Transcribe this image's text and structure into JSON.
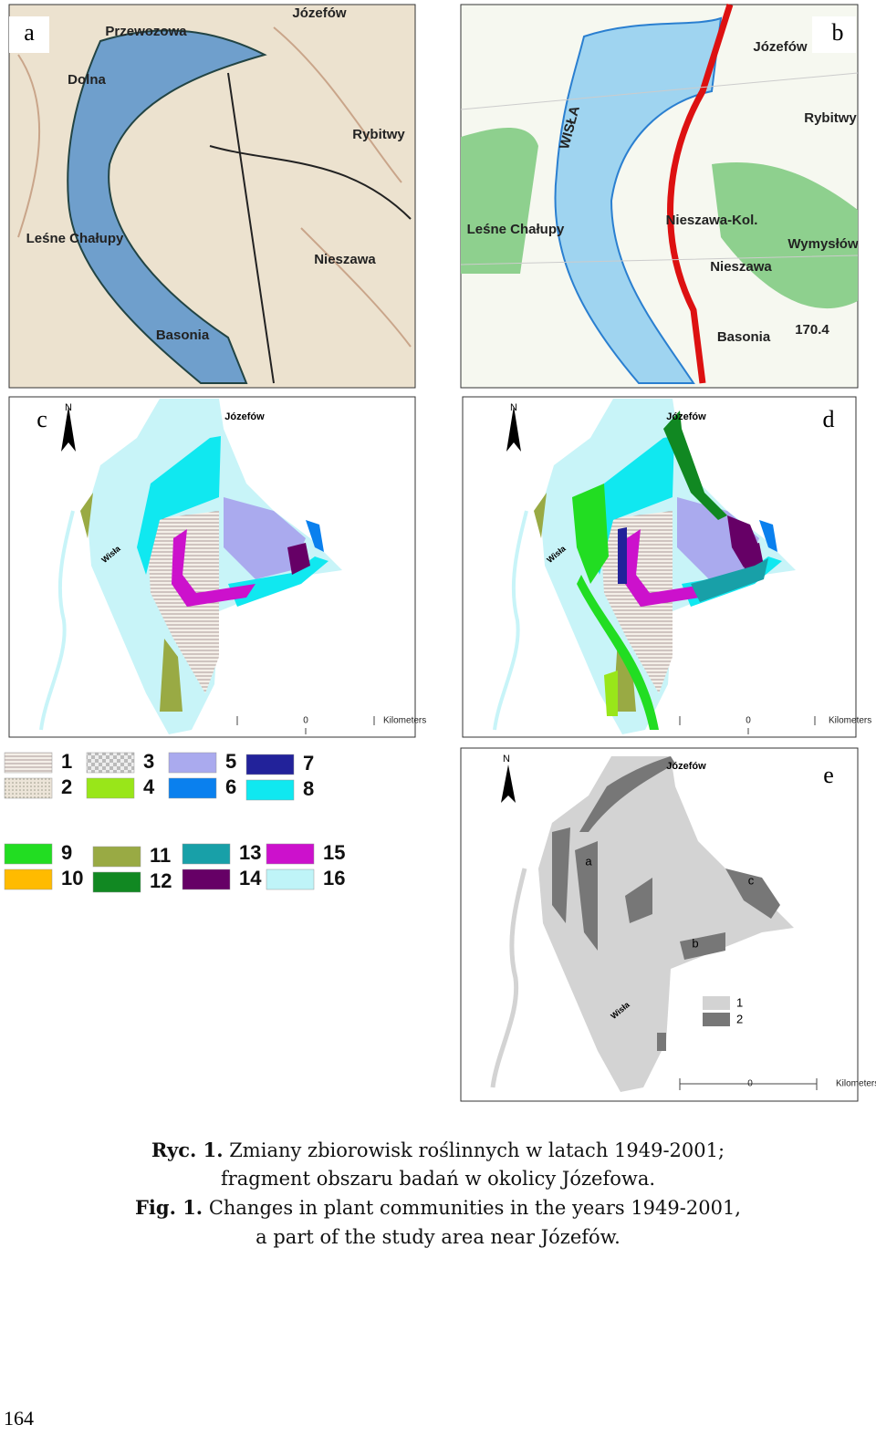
{
  "panels": {
    "a": {
      "letter": "a",
      "labels": [
        "Przewozowa",
        "Dolna",
        "Józefów",
        "Rybitwy",
        "Leśne Chałupy",
        "Nieszawa",
        "Basonia"
      ]
    },
    "b": {
      "letter": "b",
      "labels": [
        "Józefów",
        "Rybitwy",
        "Leśne Chałupy",
        "Nieszawa-Kol.",
        "Nieszawa",
        "Basonia",
        "Wymysłów",
        "WISŁA",
        "170.4"
      ]
    },
    "c": {
      "letter": "c",
      "north": "N",
      "town": "Józefów",
      "river": "Wisła",
      "scale_zero": "0",
      "scale_unit": "Kilometers"
    },
    "d": {
      "letter": "d",
      "north": "N",
      "town": "Józefów",
      "river": "Wisła",
      "scale_zero": "0",
      "scale_unit": "Kilometers"
    },
    "e": {
      "letter": "e",
      "north": "N",
      "town": "Józefów",
      "river": "Wisła",
      "scale_zero": "0",
      "scale_unit": "Kilometers",
      "sites": [
        "a",
        "b",
        "c"
      ],
      "legend": [
        {
          "label": "1",
          "color": "#d3d3d3"
        },
        {
          "label": "2",
          "color": "#777777"
        }
      ]
    }
  },
  "legend": [
    {
      "label": "1",
      "color": "#ddd4c8"
    },
    {
      "label": "2",
      "color": "#d8ccbc"
    },
    {
      "label": "3",
      "color": "#c8c0b4"
    },
    {
      "label": "4",
      "color": "#99e619"
    },
    {
      "label": "5",
      "color": "#aaaaee"
    },
    {
      "label": "6",
      "color": "#0a80ee"
    },
    {
      "label": "7",
      "color": "#22229a"
    },
    {
      "label": "8",
      "color": "#10e8f0"
    },
    {
      "label": "9",
      "color": "#22dd22"
    },
    {
      "label": "10",
      "color": "#ffbb00"
    },
    {
      "label": "11",
      "color": "#99aa44"
    },
    {
      "label": "12",
      "color": "#118822"
    },
    {
      "label": "13",
      "color": "#18a0a8"
    },
    {
      "label": "14",
      "color": "#660066"
    },
    {
      "label": "15",
      "color": "#cc11cc"
    },
    {
      "label": "16",
      "color": "#bff4f8"
    }
  ],
  "caption": {
    "pl_label": "Ryc. 1.",
    "pl_lines": [
      "Zmiany zbiorowisk roślinnych w latach 1949-2001;",
      "fragment obszaru badań w okolicy Józefowa."
    ],
    "en_label": "Fig. 1.",
    "en_lines": [
      "Changes in plant communities in the years 1949-2001,",
      "a part of the study area near Józefów."
    ]
  },
  "page_number": "164"
}
